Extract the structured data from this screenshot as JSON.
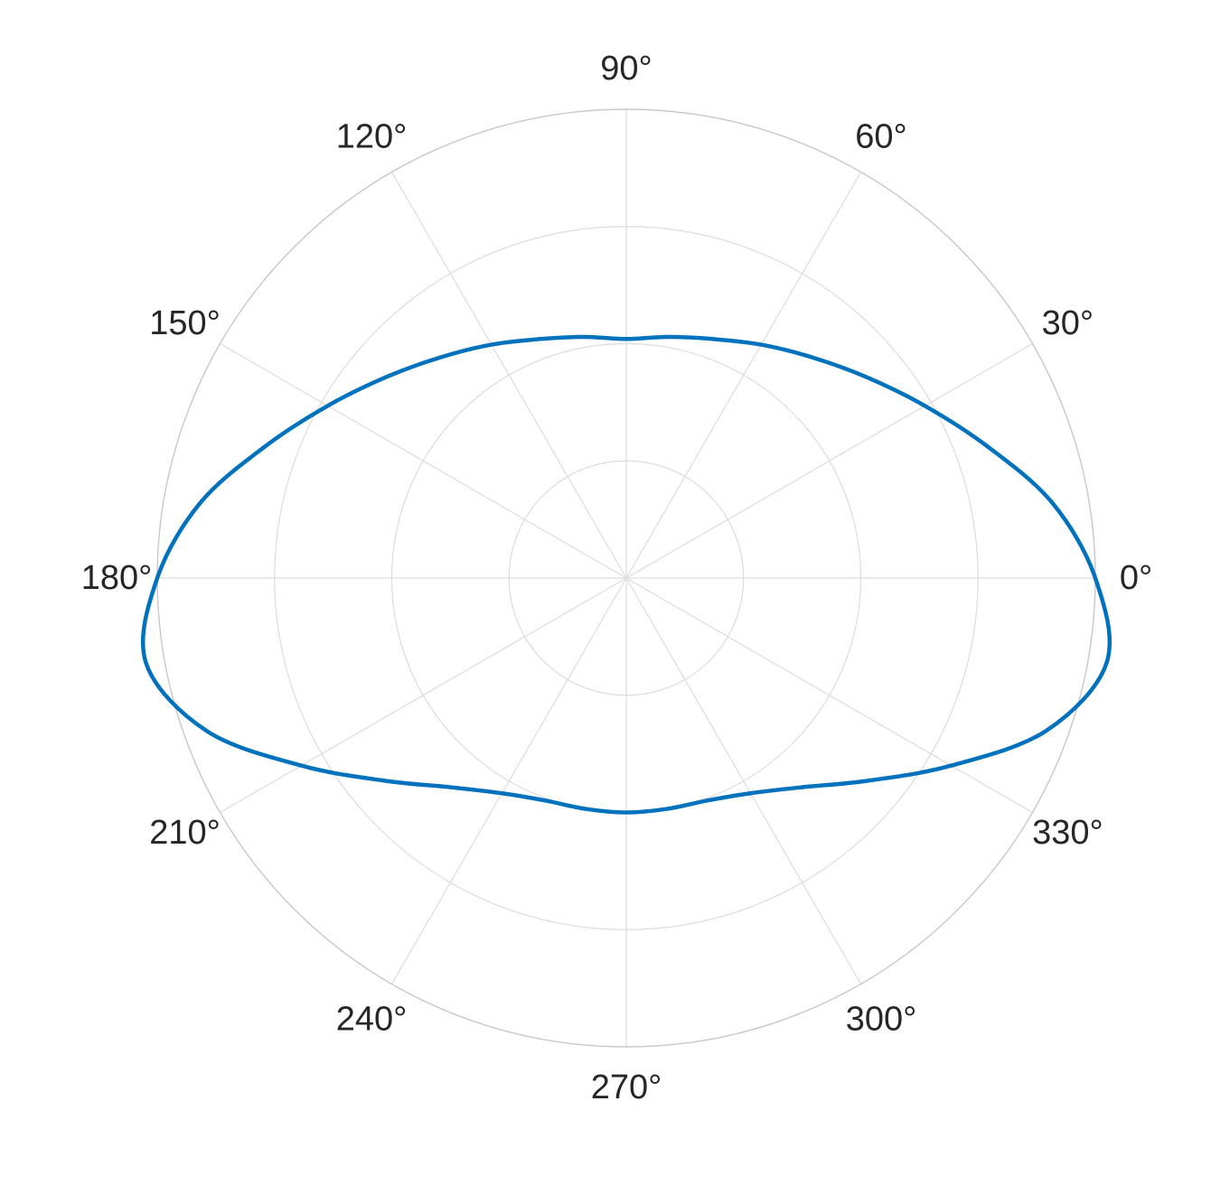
{
  "chart_data": {
    "type": "polar-line",
    "title": "",
    "angle_unit": "degrees",
    "angle_direction": "counterclockwise",
    "zero_location": "right",
    "angle_ticks": [
      0,
      30,
      60,
      90,
      120,
      150,
      180,
      210,
      240,
      270,
      300,
      330
    ],
    "angle_tick_labels": [
      "0°",
      "30°",
      "60°",
      "90°",
      "120°",
      "150°",
      "180°",
      "210°",
      "240°",
      "270°",
      "300°",
      "330°"
    ],
    "rlim": [
      0,
      4
    ],
    "r_ticks": [
      1,
      2,
      3,
      4
    ],
    "r_tick_labels_shown": false,
    "grid": true,
    "colors": {
      "series": "#0072BD",
      "grid": "#dcdcdc",
      "outer_ring": "#c8c8c8",
      "tick_label": "#262626"
    },
    "series": [
      {
        "theta": [
          0,
          10,
          20,
          30,
          40,
          50,
          60,
          70,
          80,
          90,
          100,
          110,
          120,
          130,
          140,
          150,
          160,
          170,
          180,
          190,
          200,
          210,
          220,
          230,
          240,
          250,
          260,
          270,
          280,
          290,
          300,
          310,
          320,
          330,
          340,
          350,
          360
        ],
        "r": [
          4.0,
          3.69,
          3.28,
          2.94,
          2.67,
          2.46,
          2.3,
          2.17,
          2.09,
          2.04,
          2.09,
          2.17,
          2.3,
          2.46,
          2.67,
          2.94,
          3.28,
          3.69,
          4.0,
          4.16,
          3.81,
          3.2,
          2.69,
          2.33,
          2.12,
          2.02,
          2.0,
          2.0,
          2.0,
          2.02,
          2.12,
          2.33,
          2.69,
          3.2,
          3.81,
          4.16,
          4.0
        ]
      }
    ]
  }
}
